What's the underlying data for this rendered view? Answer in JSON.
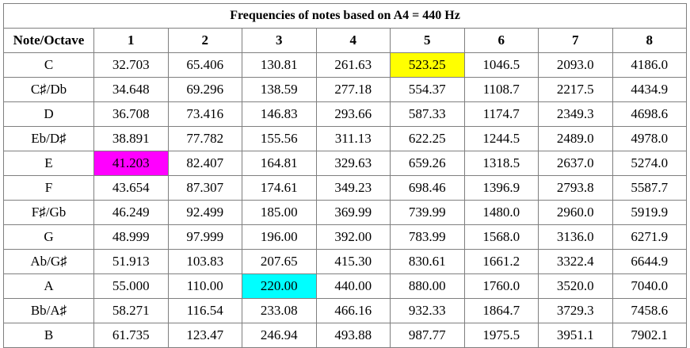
{
  "title": "Frequencies of notes based on A4 = 440 Hz",
  "header": [
    "Note/Octave",
    "1",
    "2",
    "3",
    "4",
    "5",
    "6",
    "7",
    "8"
  ],
  "rows": [
    {
      "note": "C",
      "values": [
        "32.703",
        "65.406",
        "130.81",
        "261.63",
        "523.25",
        "1046.5",
        "2093.0",
        "4186.0"
      ]
    },
    {
      "note": "C♯/Db",
      "values": [
        "34.648",
        "69.296",
        "138.59",
        "277.18",
        "554.37",
        "1108.7",
        "2217.5",
        "4434.9"
      ]
    },
    {
      "note": "D",
      "values": [
        "36.708",
        "73.416",
        "146.83",
        "293.66",
        "587.33",
        "1174.7",
        "2349.3",
        "4698.6"
      ]
    },
    {
      "note": "Eb/D♯",
      "values": [
        "38.891",
        "77.782",
        "155.56",
        "311.13",
        "622.25",
        "1244.5",
        "2489.0",
        "4978.0"
      ]
    },
    {
      "note": "E",
      "values": [
        "41.203",
        "82.407",
        "164.81",
        "329.63",
        "659.26",
        "1318.5",
        "2637.0",
        "5274.0"
      ]
    },
    {
      "note": "F",
      "values": [
        "43.654",
        "87.307",
        "174.61",
        "349.23",
        "698.46",
        "1396.9",
        "2793.8",
        "5587.7"
      ]
    },
    {
      "note": "F♯/Gb",
      "values": [
        "46.249",
        "92.499",
        "185.00",
        "369.99",
        "739.99",
        "1480.0",
        "2960.0",
        "5919.9"
      ]
    },
    {
      "note": "G",
      "values": [
        "48.999",
        "97.999",
        "196.00",
        "392.00",
        "783.99",
        "1568.0",
        "3136.0",
        "6271.9"
      ]
    },
    {
      "note": "Ab/G♯",
      "values": [
        "51.913",
        "103.83",
        "207.65",
        "415.30",
        "830.61",
        "1661.2",
        "3322.4",
        "6644.9"
      ]
    },
    {
      "note": "A",
      "values": [
        "55.000",
        "110.00",
        "220.00",
        "440.00",
        "880.00",
        "1760.0",
        "3520.0",
        "7040.0"
      ]
    },
    {
      "note": "Bb/A♯",
      "values": [
        "58.271",
        "116.54",
        "233.08",
        "466.16",
        "932.33",
        "1864.7",
        "3729.3",
        "7458.6"
      ]
    },
    {
      "note": "B",
      "values": [
        "61.735",
        "123.47",
        "246.94",
        "493.88",
        "987.77",
        "1975.5",
        "3951.1",
        "7902.1"
      ]
    }
  ],
  "highlights": [
    {
      "row": 0,
      "col": 5,
      "color": "#ffff00"
    },
    {
      "row": 4,
      "col": 1,
      "color": "#ff00ff"
    },
    {
      "row": 9,
      "col": 3,
      "color": "#00ffff"
    }
  ]
}
